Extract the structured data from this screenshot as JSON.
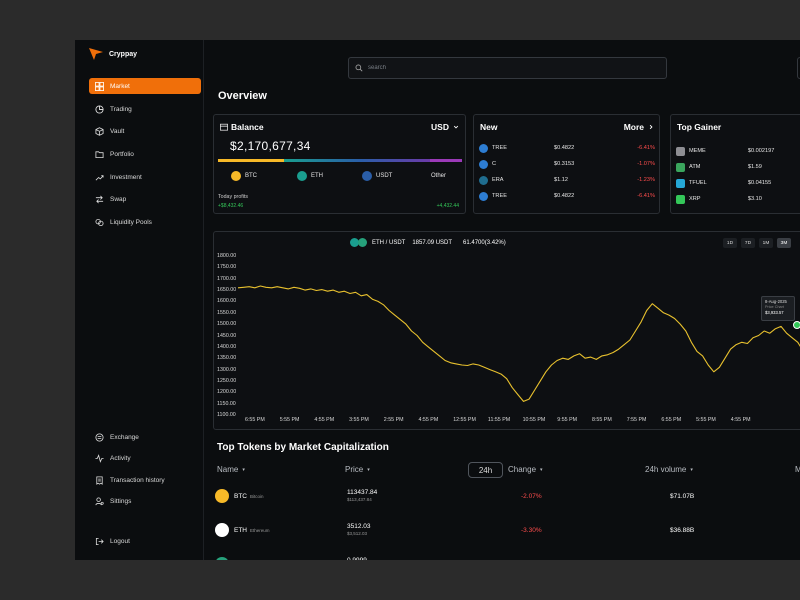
{
  "app": {
    "name": "Cryppay"
  },
  "sidebar": {
    "items": [
      {
        "label": "Market",
        "icon": "grid-icon",
        "active": true
      },
      {
        "label": "Trading",
        "icon": "pie-chart-icon"
      },
      {
        "label": "Vault",
        "icon": "box-icon"
      },
      {
        "label": "Portfolio",
        "icon": "folder-icon"
      },
      {
        "label": "Investment",
        "icon": "trending-icon"
      },
      {
        "label": "Swap",
        "icon": "swap-icon"
      },
      {
        "label": "Liquidity Pools",
        "icon": "pools-icon"
      }
    ],
    "bottom_items": [
      {
        "label": "Exchange",
        "icon": "exchange-icon"
      },
      {
        "label": "Activity",
        "icon": "activity-icon"
      },
      {
        "label": "Transaction history",
        "icon": "history-icon"
      },
      {
        "label": "Sittings",
        "icon": "settings-icon"
      }
    ],
    "logout": "Logout"
  },
  "search": {
    "placeholder": "search"
  },
  "overview": {
    "title": "Overview"
  },
  "balance": {
    "title": "Balance",
    "currency": "USD",
    "amount": "$2,170,677,34",
    "coins": [
      {
        "label": "BTC",
        "color": "#f7931a"
      },
      {
        "label": "ETH",
        "color": "#1a9e8f"
      },
      {
        "label": "USDT",
        "color": "#2a5ea8"
      },
      {
        "label": "Other",
        "color": ""
      }
    ],
    "profit_label": "Today profits",
    "profit_left": "+$8,432.46",
    "profit_right": "+4,432.44"
  },
  "new_card": {
    "title": "New",
    "more": "More",
    "rows": [
      {
        "name": "TREE",
        "price": "$0.4822",
        "change": "-6.41%",
        "color": "#2d7dd2"
      },
      {
        "name": "C",
        "price": "$0.3153",
        "change": "-1.07%",
        "color": "#2d7dd2"
      },
      {
        "name": "ERA",
        "price": "$1.12",
        "change": "-1.23%",
        "color": "#1f6d8f"
      },
      {
        "name": "TREE",
        "price": "$0.4822",
        "change": "-6.41%",
        "color": "#2d7dd2"
      }
    ]
  },
  "gainer_card": {
    "title": "Top Gainer",
    "rows": [
      {
        "name": "MEME",
        "price": "$0.002197",
        "color": "#8e8e93"
      },
      {
        "name": "ATM",
        "price": "$1.59",
        "color": "#3aa55d"
      },
      {
        "name": "TFUEL",
        "price": "$0.04155",
        "color": "#25a7d6"
      },
      {
        "name": "XRP",
        "price": "$3.10",
        "color": "#34c759"
      }
    ]
  },
  "chart_header": {
    "pair": "ETH / USDT",
    "price": "1857.09 USDT",
    "change": "61.4700(3.42%)"
  },
  "timeframes": [
    "1D",
    "7D",
    "1M",
    "3M"
  ],
  "tooltip": {
    "date": "8-Aug-2025",
    "label": "Price Chart",
    "value": "$3,933.57"
  },
  "chart_data": {
    "type": "line",
    "yticks": [
      "1800.00",
      "1750.00",
      "1700.00",
      "1650.00",
      "1600.00",
      "1550.00",
      "1500.00",
      "1450.00",
      "1400.00",
      "1350.00",
      "1300.00",
      "1250.00",
      "1200.00",
      "1150.00",
      "1100.00"
    ],
    "xticks": [
      "6:55 PM",
      "5:55 PM",
      "4:55 PM",
      "3:55 PM",
      "2:55 PM",
      "4:55 PM",
      "12:55 PM",
      "11:55 PM",
      "10:55 PM",
      "9:55 PM",
      "8:55 PM",
      "7:55 PM",
      "6:55 PM",
      "5:55 PM",
      "4:55 PM"
    ],
    "ylim": [
      1100,
      1800
    ],
    "line_color": "#e8c12e",
    "values": [
      1660,
      1662,
      1665,
      1660,
      1668,
      1662,
      1660,
      1665,
      1660,
      1655,
      1662,
      1658,
      1650,
      1655,
      1648,
      1652,
      1645,
      1650,
      1640,
      1645,
      1635,
      1640,
      1625,
      1630,
      1610,
      1600,
      1585,
      1560,
      1540,
      1520,
      1500,
      1470,
      1450,
      1420,
      1400,
      1380,
      1360,
      1340,
      1330,
      1325,
      1320,
      1318,
      1325,
      1320,
      1310,
      1300,
      1290,
      1280,
      1260,
      1220,
      1190,
      1160,
      1170,
      1210,
      1250,
      1290,
      1320,
      1340,
      1350,
      1345,
      1360,
      1370,
      1350,
      1355,
      1345,
      1360,
      1365,
      1375,
      1390,
      1410,
      1430,
      1470,
      1510,
      1560,
      1590,
      1570,
      1550,
      1540,
      1525,
      1500,
      1470,
      1420,
      1380,
      1360,
      1320,
      1290,
      1310,
      1350,
      1390,
      1410,
      1420,
      1415,
      1440,
      1450,
      1470,
      1460,
      1480,
      1490,
      1460,
      1440,
      1420,
      1380,
      1360
    ]
  },
  "tokens": {
    "title": "Top Tokens by Market Capitalization",
    "headers": {
      "name": "Name",
      "price": "Price",
      "toggle": "24h",
      "change": "Change",
      "volume": "24h volume",
      "more": "M"
    },
    "rows": [
      {
        "symbol": "BTC",
        "fullname": "Bitcoin",
        "price": "113437.84",
        "price_sub": "$113,437.84",
        "change": "-2.07%",
        "volume": "$71.07B",
        "color": "#f7b928"
      },
      {
        "symbol": "ETH",
        "fullname": "Ethereum",
        "price": "3512.03",
        "price_sub": "$3,512.03",
        "change": "-3.30%",
        "volume": "$36.88B",
        "color": "#ffffff"
      },
      {
        "symbol": "",
        "fullname": "",
        "price": "0.9999",
        "price_sub": "",
        "change": "",
        "volume": "",
        "color": "#26a17b"
      }
    ]
  }
}
